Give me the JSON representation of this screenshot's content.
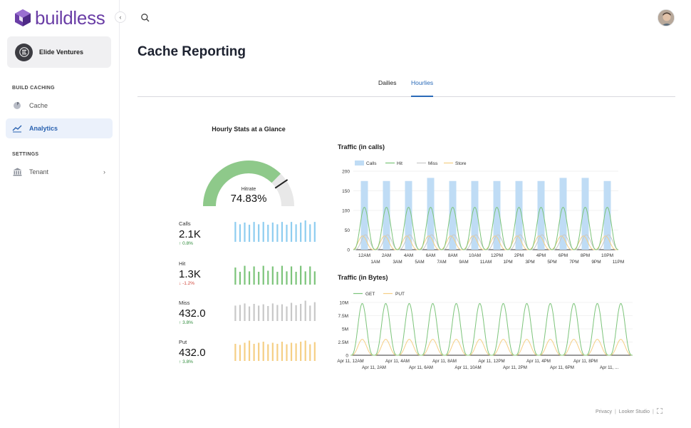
{
  "app": {
    "name": "buildless"
  },
  "sidebar": {
    "org_name": "Elide Ventures",
    "sections": [
      {
        "label": "BUILD CACHING",
        "items": [
          {
            "label": "Cache",
            "icon": "cache-icon"
          },
          {
            "label": "Analytics",
            "icon": "analytics-icon",
            "active": true
          }
        ]
      },
      {
        "label": "SETTINGS",
        "items": [
          {
            "label": "Tenant",
            "icon": "tenant-icon"
          }
        ]
      }
    ]
  },
  "page": {
    "title": "Cache Reporting",
    "tabs": [
      {
        "label": "Dailies"
      },
      {
        "label": "Hourlies",
        "active": true
      }
    ]
  },
  "glance": {
    "title": "Hourly Stats at a Glance",
    "gauge": {
      "label": "Hitrate",
      "value_text": "74.83%",
      "value": 74.83,
      "target": 81
    },
    "stats": [
      {
        "label": "Calls",
        "value": "2.1K",
        "change": "0.8%",
        "direction": "up",
        "color": "#8ecdf0",
        "spark": [
          0.93,
          0.82,
          0.9,
          0.8,
          0.93,
          0.82,
          0.93,
          0.8,
          0.9,
          0.82,
          0.93,
          0.8,
          0.93,
          0.82,
          0.9,
          1.0,
          0.82,
          0.93
        ]
      },
      {
        "label": "Hit",
        "value": "1.3K",
        "change": "-1.2%",
        "direction": "down",
        "color": "#7cc47a",
        "spark": [
          0.8,
          0.6,
          0.88,
          0.62,
          0.85,
          0.6,
          0.88,
          0.65,
          0.85,
          0.6,
          0.88,
          0.62,
          0.85,
          0.6,
          0.88,
          0.62,
          0.85,
          0.62
        ]
      },
      {
        "label": "Miss",
        "value": "432.0",
        "change": "3.8%",
        "direction": "up",
        "color": "#c8c8c8",
        "spark": [
          0.72,
          0.75,
          0.82,
          0.68,
          0.8,
          0.72,
          0.78,
          0.7,
          0.82,
          0.75,
          0.78,
          0.68,
          0.85,
          0.74,
          0.8,
          0.95,
          0.72,
          0.88
        ]
      },
      {
        "label": "Put",
        "value": "432.0",
        "change": "3.8%",
        "direction": "up",
        "color": "#f5cf85",
        "spark": [
          0.8,
          0.75,
          0.85,
          0.95,
          0.8,
          0.85,
          0.9,
          0.78,
          0.85,
          0.8,
          0.9,
          0.78,
          0.85,
          0.82,
          0.9,
          0.95,
          0.78,
          0.88
        ]
      }
    ]
  },
  "chart_data": [
    {
      "type": "bar",
      "title": "Traffic (in calls)",
      "legend": [
        "Calls",
        "Hit",
        "Miss",
        "Store"
      ],
      "legend_position": "top",
      "colors": {
        "Calls": "#bfdcf5",
        "Hit": "#7cc47a",
        "Miss": "#c8c8c8",
        "Store": "#f5cf85"
      },
      "ylim": [
        0,
        200
      ],
      "yticks": [
        0,
        50,
        100,
        150,
        200
      ],
      "xticks_top": [
        "12AM",
        "2AM",
        "4AM",
        "6AM",
        "8AM",
        "10AM",
        "12PM",
        "2PM",
        "4PM",
        "6PM",
        "8PM",
        "10PM"
      ],
      "xticks_bottom": [
        "1AM",
        "3AM",
        "5AM",
        "7AM",
        "9AM",
        "11AM",
        "1PM",
        "3PM",
        "5PM",
        "7PM",
        "9PM",
        "11PM"
      ],
      "calls": [
        175,
        175,
        175,
        183,
        175,
        175,
        175,
        175,
        175,
        183,
        183,
        175
      ],
      "hit_peak": 108,
      "miss_peak": 38,
      "store_peak": 35,
      "grid": true
    },
    {
      "type": "line",
      "title": "Traffic (in Bytes)",
      "legend": [
        "GET",
        "PUT"
      ],
      "legend_position": "top",
      "colors": {
        "GET": "#7cc47a",
        "PUT": "#f5cf85"
      },
      "ylim": [
        0,
        10
      ],
      "ytick_labels": [
        "0",
        "2.5M",
        "5M",
        "7.5M",
        "10M"
      ],
      "xticks_top": [
        "Apr 11, 12AM",
        "Apr 11, 4AM",
        "Apr 11, 8AM",
        "Apr 11, 12PM",
        "Apr 11, 4PM",
        "Apr 11, 8PM"
      ],
      "xticks_bottom": [
        "Apr 11, 2AM",
        "Apr 11, 6AM",
        "Apr 11, 10AM",
        "Apr 11, 2PM",
        "Apr 11, 6PM",
        "Apr 11, ..."
      ],
      "get_peak": 9.8,
      "put_peak": 3,
      "grid": true
    }
  ],
  "footer": {
    "privacy": "Privacy",
    "separator": "|",
    "studio": "Looker Studio"
  }
}
